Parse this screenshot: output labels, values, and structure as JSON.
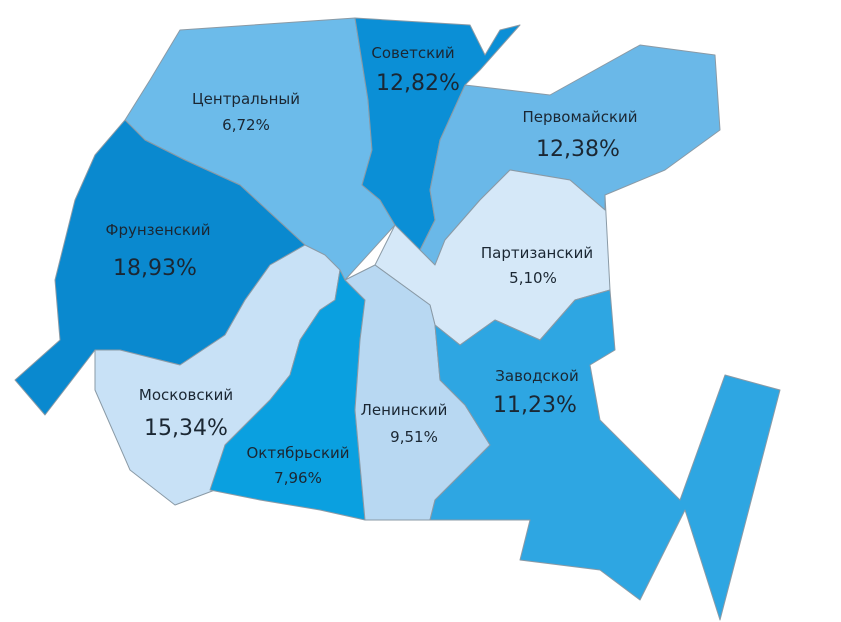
{
  "districts": [
    {
      "name": "Советский",
      "share": "12,82%"
    },
    {
      "name": "Центральный",
      "share": "6,72%"
    },
    {
      "name": "Первомайский",
      "share": "12,38%"
    },
    {
      "name": "Фрунзенский",
      "share": "18,93%"
    },
    {
      "name": "Партизанский",
      "share": "5,10%"
    },
    {
      "name": "Заводской",
      "share": "11,23%"
    },
    {
      "name": "Московский",
      "share": "15,34%"
    },
    {
      "name": "Ленинский",
      "share": "9,51%"
    },
    {
      "name": "Октябрьский",
      "share": "7,96%"
    }
  ]
}
